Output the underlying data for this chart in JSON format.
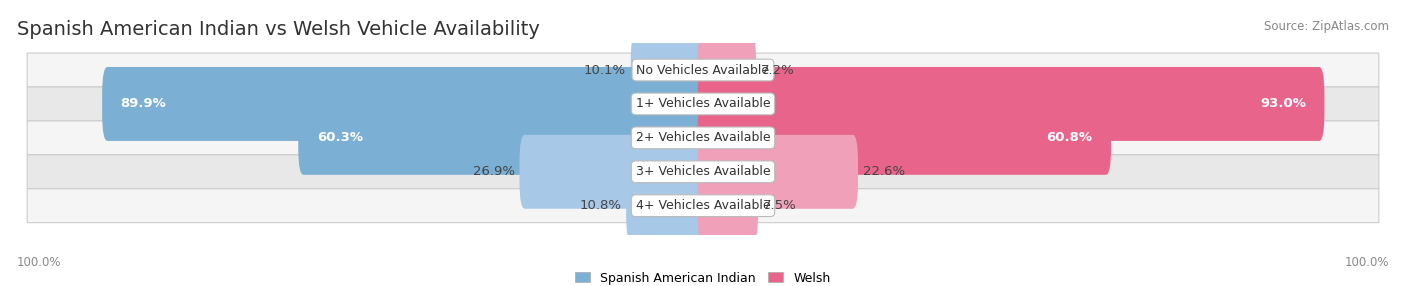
{
  "title": "Spanish American Indian vs Welsh Vehicle Availability",
  "source": "Source: ZipAtlas.com",
  "categories": [
    "No Vehicles Available",
    "1+ Vehicles Available",
    "2+ Vehicles Available",
    "3+ Vehicles Available",
    "4+ Vehicles Available"
  ],
  "spanish_values": [
    10.1,
    89.9,
    60.3,
    26.9,
    10.8
  ],
  "welsh_values": [
    7.2,
    93.0,
    60.8,
    22.6,
    7.5
  ],
  "spanish_color": "#7bafd4",
  "welsh_color": "#e8648a",
  "spanish_color_light": "#a8c8e8",
  "welsh_color_light": "#f0a0b8",
  "spanish_label": "Spanish American Indian",
  "welsh_label": "Welsh",
  "bar_height": 0.58,
  "row_bg_light": "#f5f5f5",
  "row_bg_dark": "#e8e8e8",
  "max_value": 100.0,
  "title_fontsize": 14,
  "label_fontsize": 9.5,
  "category_fontsize": 9,
  "large_threshold": 40
}
